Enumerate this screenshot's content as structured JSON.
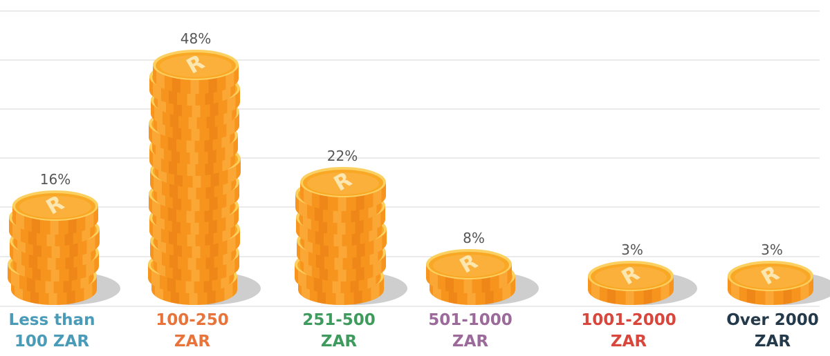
{
  "chart_data": {
    "type": "bar",
    "categories": [
      [
        "Less than",
        "100 ZAR"
      ],
      [
        "100-250",
        "ZAR"
      ],
      [
        "251-500",
        "ZAR"
      ],
      [
        "501-1000",
        "ZAR"
      ],
      [
        "1001-2000",
        "ZAR"
      ],
      [
        "Over 2000",
        "ZAR"
      ]
    ],
    "values": [
      16,
      48,
      22,
      8,
      3,
      3
    ],
    "value_labels": [
      "16%",
      "48%",
      "22%",
      "8%",
      "3%",
      "3%"
    ],
    "coins": [
      7,
      19,
      9,
      2,
      1,
      1
    ],
    "coin_symbol": "R",
    "ylim": [
      0,
      60
    ],
    "grid": true,
    "colors": {
      "categories": [
        "#4a9bb8",
        "#e8743b",
        "#3f9a5e",
        "#9b6a9a",
        "#d9463c",
        "#243a4a"
      ],
      "grid": "#d4d4d4",
      "coin_face": "#f9a825",
      "coin_face_inner": "#fbb03b",
      "coin_edge": "#f7941d",
      "coin_edge_light": "#fdb64a",
      "coin_edge_dark": "#e77a14",
      "coin_rim": "#fbd060",
      "coin_symbol": "#fde7b0",
      "shadow": "#bdbdbd",
      "value_text": "#555555"
    }
  }
}
